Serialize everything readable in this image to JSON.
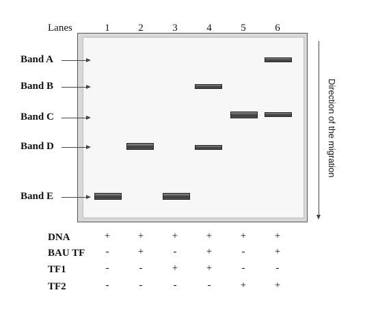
{
  "lanes_title": "Lanes",
  "lanes": [
    "1",
    "2",
    "3",
    "4",
    "5",
    "6"
  ],
  "band_labels": [
    "Band A",
    "Band B",
    "Band C",
    "Band D",
    "Band E"
  ],
  "bands": [
    {
      "lane": 1,
      "band": "E"
    },
    {
      "lane": 2,
      "band": "D"
    },
    {
      "lane": 3,
      "band": "E"
    },
    {
      "lane": 4,
      "band": "B"
    },
    {
      "lane": 4,
      "band": "D"
    },
    {
      "lane": 5,
      "band": "C"
    },
    {
      "lane": 6,
      "band": "A"
    },
    {
      "lane": 6,
      "band": "C"
    }
  ],
  "migration_label": "Direction of the migration",
  "conditions": [
    {
      "label": "DNA",
      "values": [
        "+",
        "+",
        "+",
        "+",
        "+",
        "+"
      ]
    },
    {
      "label": "BAU TF",
      "values": [
        "-",
        "+",
        "-",
        "+",
        "-",
        "+"
      ]
    },
    {
      "label": "TF1",
      "values": [
        "-",
        "-",
        "+",
        "+",
        "-",
        "-"
      ]
    },
    {
      "label": "TF2",
      "values": [
        "-",
        "-",
        "-",
        "-",
        "+",
        "+"
      ]
    }
  ]
}
